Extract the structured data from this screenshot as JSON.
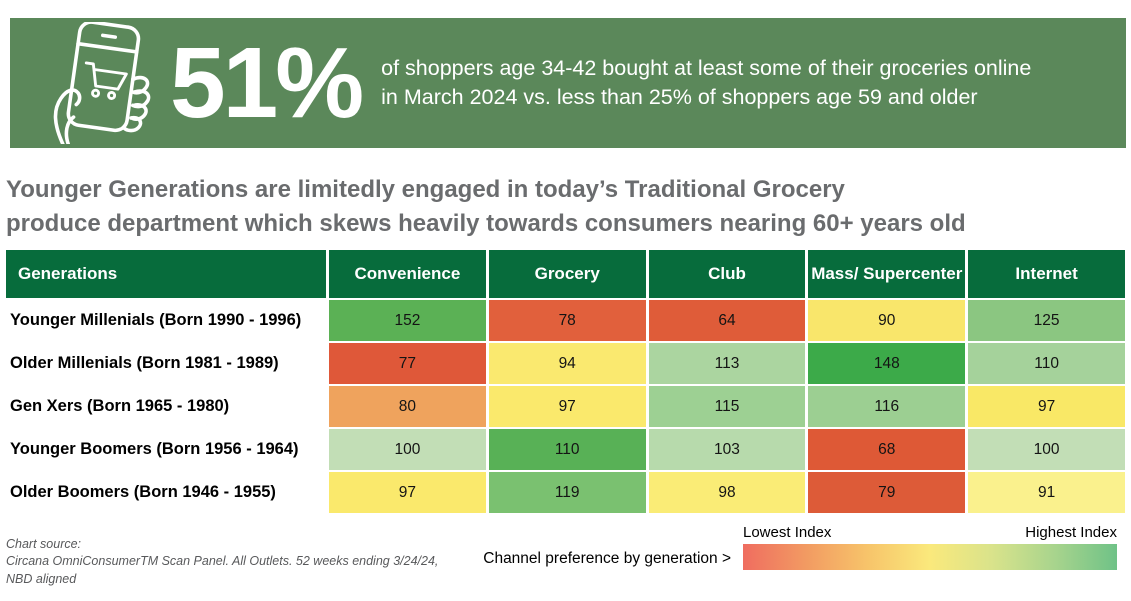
{
  "banner": {
    "bg_color": "#5b885a",
    "stat": "51%",
    "description_line1": "of shoppers age 34-42 bought at least some of their groceries online",
    "description_line2": "in March 2024 vs. less than 25% of shoppers age 59 and older",
    "icon": "hand-holding-phone-shopping-cart-icon"
  },
  "headline": {
    "line1": "Younger Generations are limitedly engaged in today’s Traditional Grocery",
    "line2": "produce department which skews heavily towards consumers nearing 60+ years old"
  },
  "table": {
    "header_bg": "#076c3c",
    "header_text_color": "#ffffff",
    "columns": [
      "Generations",
      "Convenience",
      "Grocery",
      "Club",
      "Mass/ Supercenter",
      "Internet"
    ],
    "rows": [
      {
        "label": "Younger Millenials (Born 1990 - 1996)",
        "cells": [
          {
            "value": "152",
            "color": "#5bb155"
          },
          {
            "value": "78",
            "color": "#e1603c"
          },
          {
            "value": "64",
            "color": "#df5c39"
          },
          {
            "value": "90",
            "color": "#f9e66b"
          },
          {
            "value": "125",
            "color": "#8bc681"
          }
        ]
      },
      {
        "label": "Older Millenials (Born 1981 - 1989)",
        "cells": [
          {
            "value": "77",
            "color": "#df5839"
          },
          {
            "value": "94",
            "color": "#fae96f"
          },
          {
            "value": "113",
            "color": "#abd5a0"
          },
          {
            "value": "148",
            "color": "#3caa49"
          },
          {
            "value": "110",
            "color": "#a5d29b"
          }
        ]
      },
      {
        "label": "Gen Xers (Born 1965 - 1980)",
        "cells": [
          {
            "value": "80",
            "color": "#efa35d"
          },
          {
            "value": "97",
            "color": "#fae96c"
          },
          {
            "value": "115",
            "color": "#9dd093"
          },
          {
            "value": "116",
            "color": "#9ccf92"
          },
          {
            "value": "97",
            "color": "#f9e866"
          }
        ]
      },
      {
        "label": "Younger Boomers (Born 1956 - 1964)",
        "cells": [
          {
            "value": "100",
            "color": "#c2deb6"
          },
          {
            "value": "110",
            "color": "#58b156"
          },
          {
            "value": "103",
            "color": "#b7daac"
          },
          {
            "value": "68",
            "color": "#de5936"
          },
          {
            "value": "100",
            "color": "#c2deb6"
          }
        ]
      },
      {
        "label": "Older Boomers (Born 1946 - 1955)",
        "cells": [
          {
            "value": "97",
            "color": "#fae96c"
          },
          {
            "value": "119",
            "color": "#7ac170"
          },
          {
            "value": "98",
            "color": "#faec76"
          },
          {
            "value": "79",
            "color": "#dd5b38"
          },
          {
            "value": "91",
            "color": "#faf18d"
          }
        ]
      }
    ]
  },
  "footer": {
    "source_lines": [
      "Chart source:",
      "Circana OmniConsumerTM Scan Panel. All Outlets. 52 weeks ending 3/24/24,",
      "NBD aligned"
    ],
    "legend_note": "Channel preference by generation >",
    "legend": {
      "low_label": "Lowest Index",
      "high_label": "Highest Index",
      "gradient_stops": [
        "#ef6d60",
        "#f29a62",
        "#f7c46a",
        "#fae97c",
        "#d9e38b",
        "#a8d48d",
        "#6fc287"
      ]
    }
  },
  "chart_data": {
    "type": "heatmap",
    "title": "Younger Generations are limitedly engaged in today’s Traditional Grocery produce department which skews heavily towards consumers nearing 60+ years old",
    "rows": [
      "Younger Millenials (Born 1990 - 1996)",
      "Older Millenials (Born 1981 - 1989)",
      "Gen Xers (Born 1965 - 1980)",
      "Younger Boomers (Born 1956 - 1964)",
      "Older Boomers (Born 1946 - 1955)"
    ],
    "columns": [
      "Convenience",
      "Grocery",
      "Club",
      "Mass/Supercenter",
      "Internet"
    ],
    "values": [
      [
        152,
        78,
        64,
        90,
        125
      ],
      [
        77,
        94,
        113,
        148,
        110
      ],
      [
        80,
        97,
        115,
        116,
        97
      ],
      [
        100,
        110,
        103,
        68,
        100
      ],
      [
        97,
        119,
        98,
        79,
        91
      ]
    ],
    "legend": {
      "low": "Lowest Index",
      "high": "Highest Index"
    },
    "color_scale": "red (low) to yellow to green (high), scaled per column",
    "stat_callout": "51% of shoppers age 34-42 bought at least some of their groceries online in March 2024 vs. less than 25% of shoppers age 59 and older"
  }
}
